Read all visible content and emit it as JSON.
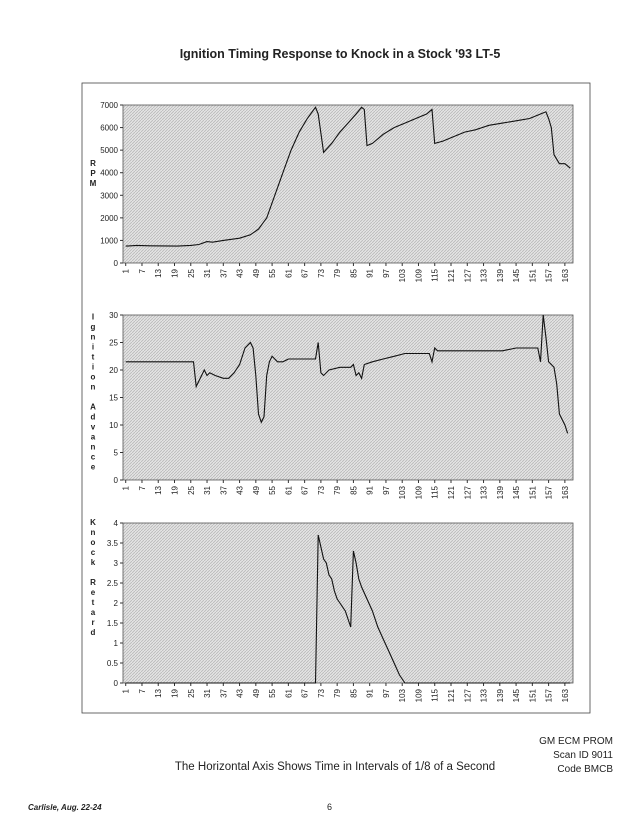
{
  "title": "Ignition Timing Response to Knock in a Stock '93 LT-5",
  "chart_data": [
    {
      "type": "line",
      "y_label": "RPM",
      "color": "#111111",
      "xlim": [
        0,
        166
      ],
      "xticks": [
        1,
        7,
        13,
        19,
        25,
        31,
        37,
        43,
        49,
        55,
        61,
        67,
        73,
        79,
        85,
        91,
        97,
        103,
        109,
        115,
        121,
        127,
        133,
        139,
        145,
        151,
        157,
        163
      ],
      "ylim": [
        0,
        7000
      ],
      "yticks": [
        0,
        1000,
        2000,
        3000,
        4000,
        5000,
        6000,
        7000
      ],
      "x": [
        1,
        5,
        10,
        20,
        25,
        28,
        31,
        33,
        37,
        43,
        47,
        50,
        53,
        56,
        59,
        62,
        65,
        68,
        71,
        72,
        74,
        77,
        80,
        83,
        86,
        88,
        89,
        90,
        92,
        96,
        100,
        104,
        108,
        112,
        114,
        115,
        118,
        122,
        126,
        130,
        135,
        140,
        145,
        150,
        154,
        156,
        157,
        158,
        159,
        160,
        161,
        163,
        165
      ],
      "values": [
        750,
        780,
        760,
        750,
        780,
        820,
        950,
        920,
        1000,
        1100,
        1250,
        1500,
        2000,
        3000,
        4000,
        5000,
        5800,
        6400,
        6900,
        6600,
        4900,
        5300,
        5800,
        6200,
        6600,
        6900,
        6800,
        5200,
        5300,
        5700,
        6000,
        6200,
        6400,
        6600,
        6800,
        5300,
        5400,
        5600,
        5800,
        5900,
        6100,
        6200,
        6300,
        6400,
        6600,
        6700,
        6400,
        6000,
        4800,
        4600,
        4400,
        4400,
        4200
      ]
    },
    {
      "type": "line",
      "y_label": "Ignition Advance",
      "color": "#111111",
      "xlim": [
        0,
        166
      ],
      "xticks": [
        1,
        7,
        13,
        19,
        25,
        31,
        37,
        43,
        49,
        55,
        61,
        67,
        73,
        79,
        85,
        91,
        97,
        103,
        109,
        115,
        121,
        127,
        133,
        139,
        145,
        151,
        157,
        163
      ],
      "ylim": [
        0,
        30
      ],
      "yticks": [
        0,
        5,
        10,
        15,
        20,
        25,
        30
      ],
      "x": [
        1,
        10,
        20,
        26,
        27,
        29,
        30,
        31,
        32,
        34,
        37,
        39,
        41,
        43,
        45,
        47,
        48,
        49,
        50,
        51,
        52,
        53,
        54,
        55,
        57,
        59,
        61,
        66,
        71,
        72,
        73,
        74,
        76,
        80,
        84,
        85,
        86,
        87,
        88,
        89,
        92,
        96,
        100,
        104,
        110,
        113,
        114,
        115,
        116,
        120,
        130,
        140,
        145,
        150,
        153,
        154,
        155,
        156,
        157,
        159,
        160,
        161,
        163,
        164
      ],
      "values": [
        21.5,
        21.5,
        21.5,
        21.5,
        17,
        19,
        20,
        19,
        19.5,
        19,
        18.5,
        18.5,
        19.5,
        21,
        24,
        25,
        24,
        19,
        12,
        10.5,
        11.5,
        19,
        21.5,
        22.5,
        21.5,
        21.5,
        22,
        22,
        22,
        25,
        19.5,
        19,
        20,
        20.5,
        20.5,
        21,
        19,
        19.5,
        18.5,
        21,
        21.5,
        22,
        22.5,
        23,
        23,
        23,
        21.5,
        24,
        23.5,
        23.5,
        23.5,
        23.5,
        24,
        24,
        24,
        21.5,
        30,
        26,
        21.5,
        20.5,
        17.5,
        12,
        10,
        8.5
      ]
    },
    {
      "type": "line",
      "y_label": "Knock Retard",
      "color": "#111111",
      "xlim": [
        0,
        166
      ],
      "xticks": [
        1,
        7,
        13,
        19,
        25,
        31,
        37,
        43,
        49,
        55,
        61,
        67,
        73,
        79,
        85,
        91,
        97,
        103,
        109,
        115,
        121,
        127,
        133,
        139,
        145,
        151,
        157,
        163
      ],
      "ylim": [
        0,
        4
      ],
      "yticks": [
        0,
        0.5,
        1,
        1.5,
        2,
        2.5,
        3,
        3.5,
        4
      ],
      "x": [
        1,
        70,
        71,
        72,
        73,
        74,
        75,
        76,
        77,
        78,
        79,
        80,
        82,
        84,
        85,
        86,
        87,
        88,
        90,
        92,
        94,
        96,
        98,
        100,
        102,
        103,
        104,
        120,
        165
      ],
      "values": [
        0,
        0,
        0,
        3.7,
        3.4,
        3.1,
        3.0,
        2.7,
        2.6,
        2.3,
        2.1,
        2.0,
        1.8,
        1.4,
        3.3,
        3.0,
        2.6,
        2.4,
        2.1,
        1.8,
        1.4,
        1.1,
        0.8,
        0.5,
        0.2,
        0.1,
        0,
        0,
        0
      ]
    }
  ],
  "footer": {
    "note": "The Horizontal Axis Shows Time in Intervals of 1/8 of a Second",
    "prom": [
      "GM ECM PROM",
      "Scan ID 9011",
      "Code BMCB"
    ],
    "event": "Carlisle, Aug. 22-24",
    "page": "6"
  }
}
